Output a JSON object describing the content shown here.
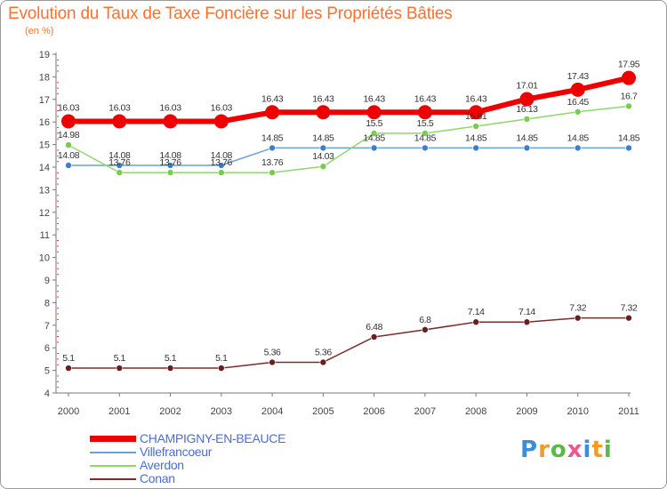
{
  "title": "Evolution du Taux de Taxe Foncière sur les Propriétés Bâties",
  "unit_label": "(en %)",
  "logo": {
    "text": "Proxiti"
  },
  "chart_data": {
    "type": "line",
    "x": [
      "2000",
      "2001",
      "2002",
      "2003",
      "2004",
      "2005",
      "2006",
      "2007",
      "2008",
      "2009",
      "2010",
      "2011"
    ],
    "ylim": [
      4,
      19
    ],
    "yticks": [
      4,
      5,
      6,
      7,
      8,
      9,
      10,
      11,
      12,
      13,
      14,
      15,
      16,
      17,
      18,
      19
    ],
    "grid": false,
    "legend_position": "bottom-left",
    "series": [
      {
        "name": "CHAMPIGNY-EN-BEAUCE",
        "color": "#ee0000",
        "width": 6,
        "marker": 8,
        "values": [
          16.03,
          16.03,
          16.03,
          16.03,
          16.43,
          16.43,
          16.43,
          16.43,
          16.43,
          17.01,
          17.43,
          17.95
        ],
        "labels": [
          "16.03",
          "16.03",
          "16.03",
          "16.03",
          "16.43",
          "16.43",
          "16.43",
          "16.43",
          "16.43",
          "17.01",
          "17.43",
          "17.95"
        ]
      },
      {
        "name": "Villefrancoeur",
        "color": "#6aa0d6",
        "width": 1.5,
        "marker": 3.5,
        "markerFill": "#3f7fc7",
        "values": [
          14.08,
          14.08,
          14.08,
          14.08,
          14.85,
          14.85,
          14.85,
          14.85,
          14.85,
          14.85,
          14.85,
          14.85
        ],
        "labels": [
          "14.08",
          "14.08",
          "14.08",
          "14.08",
          "14.85",
          "14.85",
          "14.85",
          "14.85",
          "14.85",
          "14.85",
          "14.85",
          "14.85"
        ]
      },
      {
        "name": "Averdon",
        "color": "#8ed86a",
        "width": 1.5,
        "marker": 3.5,
        "markerFill": "#78cc4f",
        "values": [
          14.98,
          13.76,
          13.76,
          13.76,
          13.76,
          14.03,
          15.5,
          15.5,
          15.81,
          16.13,
          16.45,
          16.7
        ],
        "labels": [
          "14.98",
          "13.76",
          "13.76",
          "13.76",
          "13.76",
          "14.03",
          "15.5",
          "15.5",
          "15.81",
          "16.13",
          "16.45",
          "16.7"
        ]
      },
      {
        "name": "Conan",
        "color": "#7b2b2b",
        "width": 1.5,
        "marker": 3.5,
        "markerFill": "#6a1f1f",
        "values": [
          5.1,
          5.1,
          5.1,
          5.1,
          5.36,
          5.36,
          6.48,
          6.8,
          7.14,
          7.14,
          7.32,
          7.32
        ],
        "labels": [
          "5.1",
          "5.1",
          "5.1",
          "5.1",
          "5.36",
          "5.36",
          "6.48",
          "6.8",
          "7.14",
          "7.14",
          "7.32",
          "7.32"
        ]
      }
    ]
  }
}
